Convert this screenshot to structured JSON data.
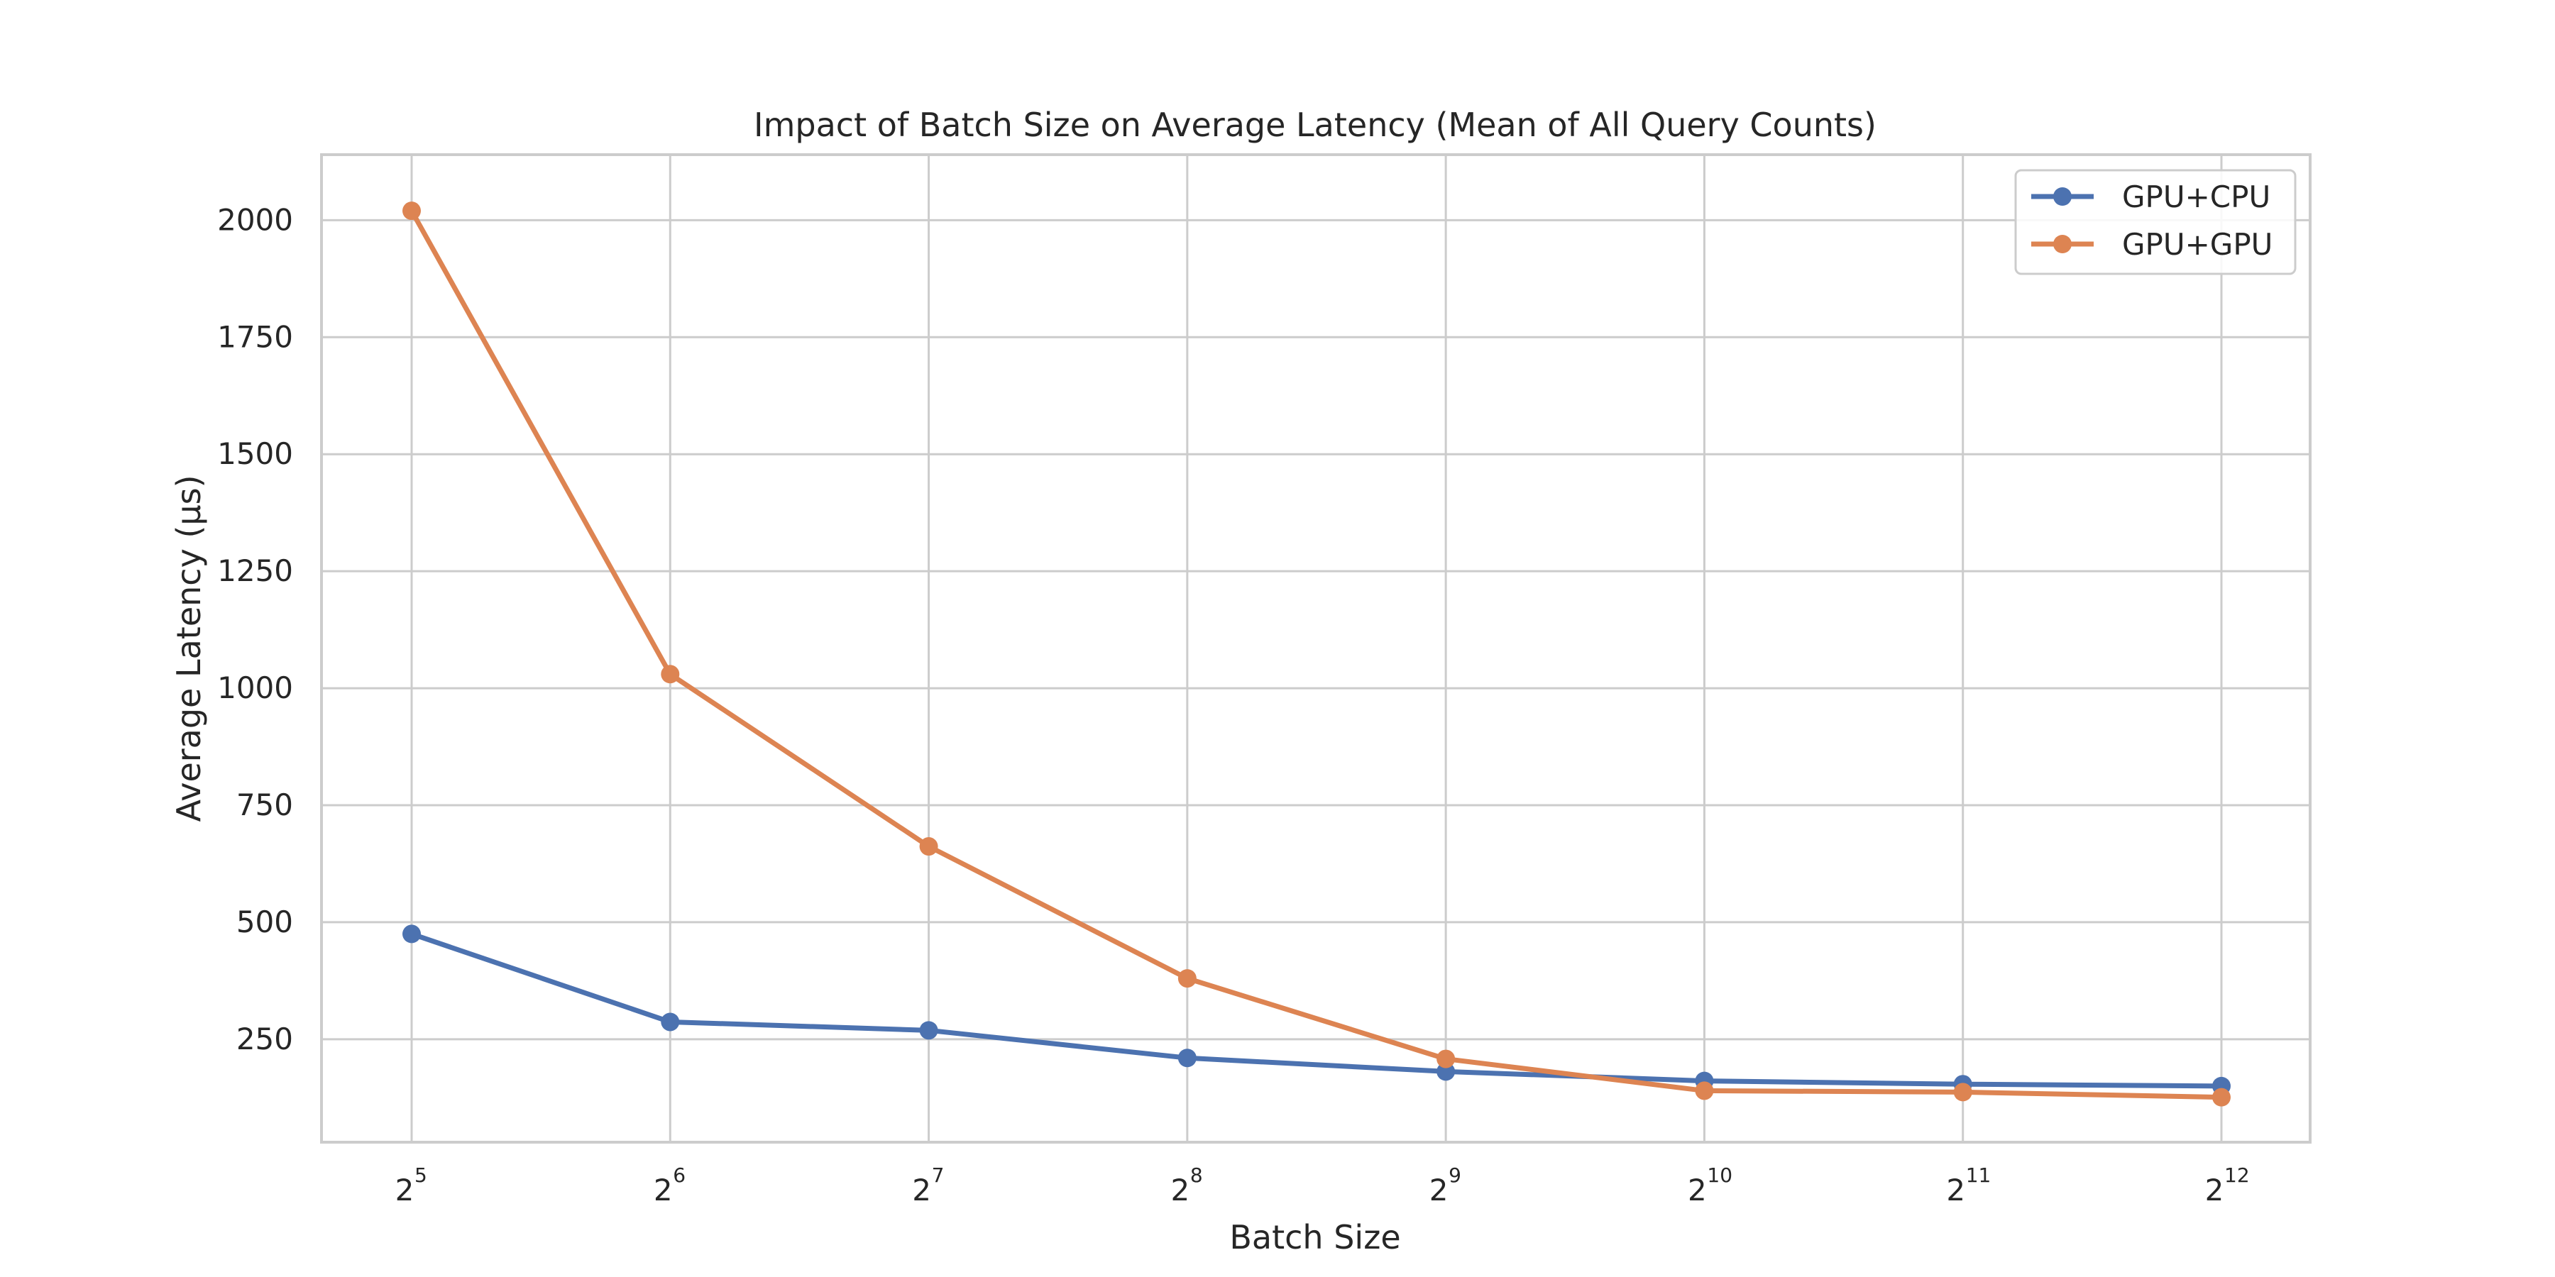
{
  "chart_data": {
    "type": "line",
    "title": "Impact of Batch Size on Average Latency (Mean of All Query Counts)",
    "xlabel": "Batch Size",
    "ylabel": "Average Latency (µs)",
    "x_scale": "log2",
    "x": [
      32,
      64,
      128,
      256,
      512,
      1024,
      2048,
      4096
    ],
    "x_tick_labels": [
      {
        "base": "2",
        "exp": "5"
      },
      {
        "base": "2",
        "exp": "6"
      },
      {
        "base": "2",
        "exp": "7"
      },
      {
        "base": "2",
        "exp": "8"
      },
      {
        "base": "2",
        "exp": "9"
      },
      {
        "base": "2",
        "exp": "10"
      },
      {
        "base": "2",
        "exp": "11"
      },
      {
        "base": "2",
        "exp": "12"
      }
    ],
    "yticks": [
      250,
      500,
      750,
      1000,
      1250,
      1500,
      1750,
      2000
    ],
    "ylim": [
      30,
      2140
    ],
    "grid": true,
    "legend_position": "top-right",
    "series": [
      {
        "name": "GPU+CPU",
        "color": "#4c72b0",
        "values": [
          475,
          287,
          269,
          210,
          181,
          161,
          154,
          150
        ]
      },
      {
        "name": "GPU+GPU",
        "color": "#dd8452",
        "values": [
          2020,
          1030,
          662,
          380,
          208,
          140,
          137,
          126
        ]
      }
    ]
  }
}
